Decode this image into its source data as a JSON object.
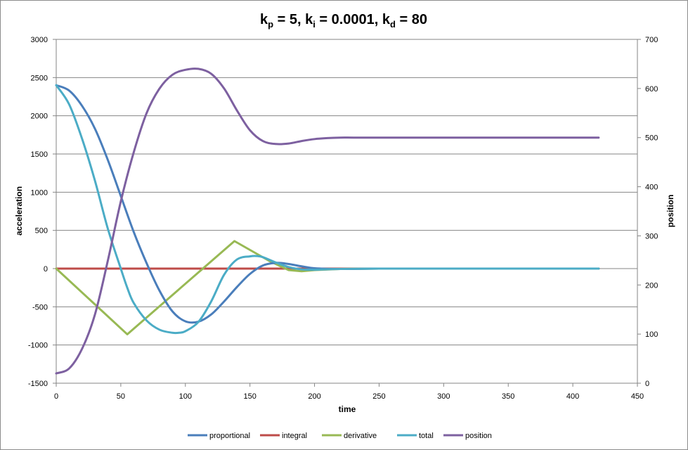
{
  "chart_data": {
    "type": "line",
    "title": {
      "base": "k",
      "parts": [
        {
          "sub": "p",
          "text": " = 5, "
        },
        {
          "sub": "i",
          "text": " = 0.0001, "
        },
        {
          "sub": "d",
          "text": " = 80"
        }
      ]
    },
    "xlabel": "time",
    "ylabel": "acceleration",
    "y2label": "position",
    "xlim": [
      0,
      450
    ],
    "ylim": [
      -1500,
      3000
    ],
    "y2lim": [
      0,
      700
    ],
    "xticks": [
      0,
      50,
      100,
      150,
      200,
      250,
      300,
      350,
      400,
      450
    ],
    "yticks": [
      -1500,
      -1000,
      -500,
      0,
      500,
      1000,
      1500,
      2000,
      2500,
      3000
    ],
    "y2ticks": [
      0,
      100,
      200,
      300,
      400,
      500,
      600,
      700
    ],
    "grid": true,
    "legend_position": "bottom",
    "colors": {
      "proportional": "#4a7ebb",
      "integral": "#be4b48",
      "derivative": "#98b954",
      "total": "#4bacc6",
      "position": "#7d60a0"
    },
    "series": [
      {
        "name": "proportional",
        "axis": "left",
        "x": [
          0,
          10,
          20,
          30,
          40,
          50,
          60,
          70,
          80,
          90,
          100,
          110,
          120,
          130,
          140,
          150,
          160,
          170,
          180,
          190,
          200,
          220,
          250,
          300,
          350,
          420
        ],
        "values": [
          2400,
          2330,
          2130,
          1830,
          1420,
          950,
          480,
          70,
          -290,
          -560,
          -690,
          -695,
          -600,
          -430,
          -240,
          -70,
          40,
          75,
          60,
          30,
          5,
          -5,
          0,
          0,
          0,
          0
        ]
      },
      {
        "name": "integral",
        "axis": "left",
        "x": [
          0,
          420
        ],
        "values": [
          0,
          0
        ]
      },
      {
        "name": "derivative",
        "axis": "left",
        "x": [
          0,
          55,
          138,
          165,
          180,
          190,
          200,
          220,
          250,
          300,
          420
        ],
        "values": [
          0,
          -860,
          360,
          100,
          -20,
          -35,
          -20,
          -5,
          0,
          0,
          0
        ]
      },
      {
        "name": "total",
        "axis": "left",
        "x": [
          0,
          10,
          20,
          30,
          40,
          50,
          55,
          60,
          70,
          80,
          90,
          95,
          100,
          110,
          120,
          130,
          140,
          150,
          155,
          160,
          170,
          180,
          190,
          200,
          220,
          250,
          300,
          420
        ],
        "values": [
          2400,
          2150,
          1700,
          1150,
          520,
          0,
          -250,
          -450,
          -680,
          -800,
          -840,
          -840,
          -820,
          -700,
          -430,
          -80,
          120,
          160,
          165,
          150,
          80,
          20,
          -10,
          -15,
          -5,
          0,
          0,
          0
        ]
      },
      {
        "name": "position",
        "axis": "right",
        "x": [
          0,
          10,
          20,
          30,
          40,
          50,
          60,
          70,
          80,
          90,
          100,
          110,
          120,
          130,
          140,
          150,
          160,
          170,
          180,
          190,
          200,
          210,
          220,
          230,
          250,
          300,
          420
        ],
        "values": [
          20,
          30,
          70,
          140,
          250,
          370,
          470,
          550,
          600,
          628,
          638,
          640,
          630,
          600,
          555,
          515,
          493,
          487,
          488,
          493,
          497,
          499,
          500,
          500,
          500,
          500,
          500
        ]
      }
    ]
  }
}
